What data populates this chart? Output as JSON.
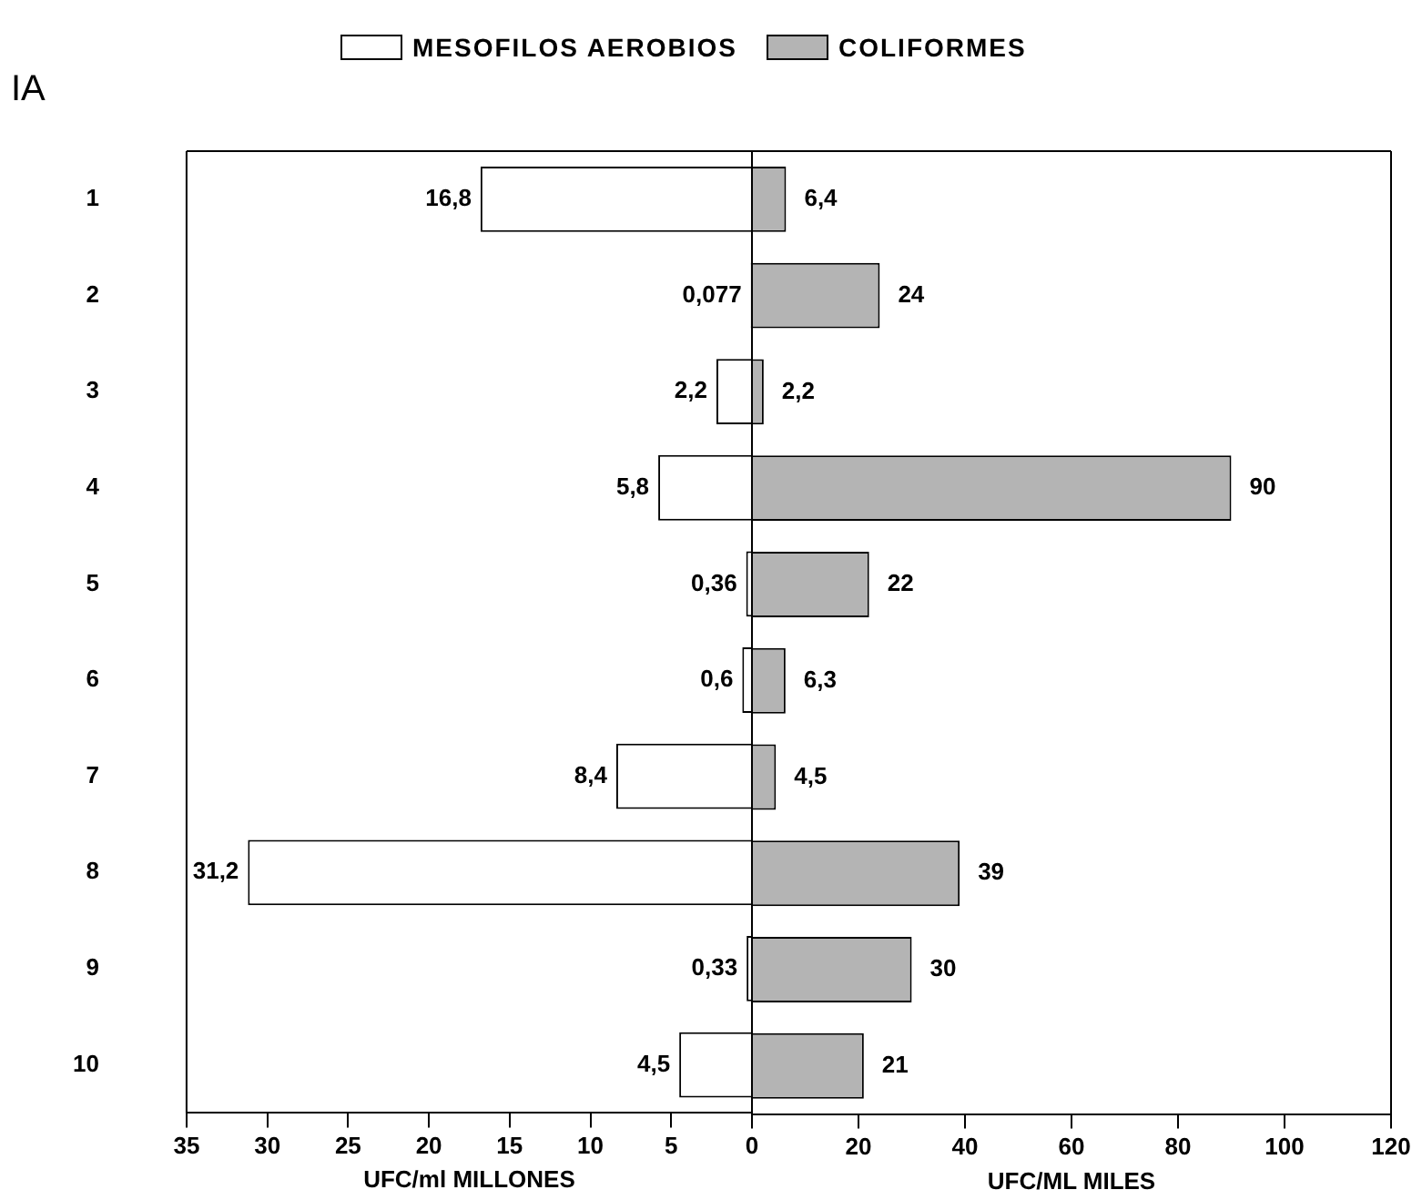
{
  "chart_data": [
    {
      "type": "bar",
      "orientation": "horizontal",
      "ylabel": "IA",
      "xlabel": "UFC/ml MILLONES",
      "categories": [
        "1",
        "2",
        "3",
        "4",
        "5",
        "6",
        "7",
        "8",
        "9",
        "10"
      ],
      "series": [
        {
          "name": "MESOFILOS AEROBIOS",
          "color": "#ffffff",
          "values": [
            16.8,
            0.077,
            2.2,
            5.8,
            0.36,
            0.6,
            8.4,
            31.2,
            0.33,
            4.5
          ],
          "value_labels": [
            "16,8",
            "0,077",
            "2,2",
            "5,8",
            "0,36",
            "0,6",
            "8,4",
            "31,2",
            "0,33",
            "4,5"
          ]
        }
      ],
      "xlim": [
        35,
        0
      ],
      "xticks": [
        35,
        30,
        25,
        20,
        15,
        10,
        5,
        0
      ],
      "legend": "top right"
    },
    {
      "type": "bar",
      "orientation": "horizontal",
      "xlabel": "UFC/ML MILES",
      "categories": [
        "1",
        "2",
        "3",
        "4",
        "5",
        "6",
        "7",
        "8",
        "9",
        "10"
      ],
      "series": [
        {
          "name": "COLIFORMES",
          "color": "#b4b4b4",
          "values": [
            6.4,
            24,
            2.2,
            90,
            22,
            6.3,
            4.5,
            39,
            30,
            21
          ],
          "value_labels": [
            "6,4",
            "24",
            "2,2",
            "90",
            "22",
            "6,3",
            "4,5",
            "39",
            "30",
            "21"
          ]
        }
      ],
      "xlim": [
        0,
        120
      ],
      "xticks": [
        {
          "value": 0,
          "label": null
        },
        20,
        40,
        60,
        80,
        100,
        120
      ],
      "tick_labels": "x",
      "legend": "top left"
    }
  ]
}
